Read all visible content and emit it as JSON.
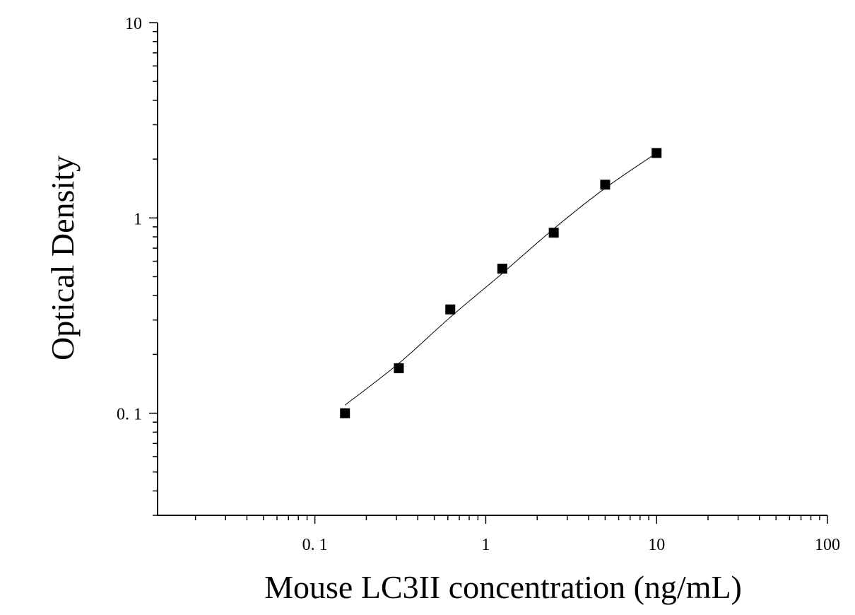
{
  "chart_data": {
    "type": "scatter",
    "x_scale": "log",
    "y_scale": "log",
    "xlabel": "Mouse LC3II concentration (ng/mL)",
    "ylabel": "Optical Density",
    "xlim": [
      0.012,
      100
    ],
    "ylim": [
      0.03,
      10
    ],
    "x_ticks": [
      {
        "value": 0.1,
        "label": "0. 1"
      },
      {
        "value": 1,
        "label": "1"
      },
      {
        "value": 10,
        "label": "10"
      },
      {
        "value": 100,
        "label": "100"
      }
    ],
    "y_ticks": [
      {
        "value": 0.1,
        "label": "0. 1"
      },
      {
        "value": 1,
        "label": "1"
      },
      {
        "value": 10,
        "label": "10"
      }
    ],
    "series": [
      {
        "marker": "square",
        "color": "#000000",
        "x": [
          0.15,
          0.31,
          0.62,
          1.25,
          2.5,
          5,
          10
        ],
        "y": [
          0.1,
          0.17,
          0.34,
          0.55,
          0.84,
          1.48,
          2.15
        ]
      }
    ],
    "fit_curve": {
      "color": "#000000",
      "x": [
        0.15,
        0.31,
        0.62,
        1.25,
        2.5,
        5,
        10
      ],
      "y": [
        0.11,
        0.18,
        0.31,
        0.52,
        0.88,
        1.42,
        2.15
      ]
    },
    "grid": false,
    "legend": "none"
  }
}
